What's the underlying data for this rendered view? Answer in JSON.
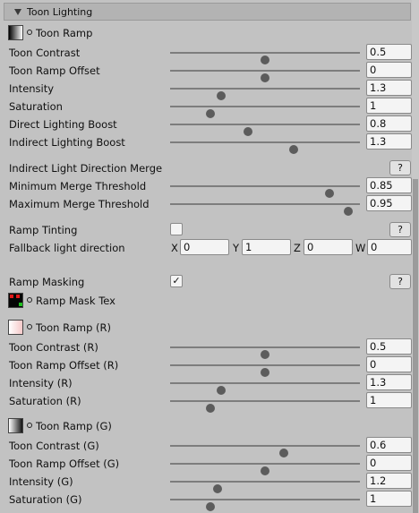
{
  "header": {
    "title": "Toon Lighting"
  },
  "toon_ramp": {
    "label": "Toon Ramp"
  },
  "sliders_main": [
    {
      "label": "Toon Contrast",
      "value": "0.5",
      "fraction": 0.5
    },
    {
      "label": "Toon Ramp Offset",
      "value": "0",
      "fraction": 0.5
    },
    {
      "label": "Intensity",
      "value": "1.3",
      "fraction": 0.27
    },
    {
      "label": "Saturation",
      "value": "1",
      "fraction": 0.21
    },
    {
      "label": "Direct Lighting Boost",
      "value": "0.8",
      "fraction": 0.41
    },
    {
      "label": "Indirect Lighting Boost",
      "value": "1.3",
      "fraction": 0.65
    }
  ],
  "merge": {
    "title": "Indirect Light Direction Merge",
    "help": "?",
    "min": {
      "label": "Minimum Merge Threshold",
      "value": "0.85",
      "fraction": 0.84
    },
    "max": {
      "label": "Maximum Merge Threshold",
      "value": "0.95",
      "fraction": 0.94
    }
  },
  "ramp_tinting": {
    "label": "Ramp Tinting",
    "checked": false,
    "help": "?"
  },
  "fallback": {
    "label": "Fallback light direction",
    "x_label": "X",
    "x": "0",
    "y_label": "Y",
    "y": "1",
    "z_label": "Z",
    "z": "0",
    "w_label": "W",
    "w": "0"
  },
  "ramp_masking": {
    "label": "Ramp Masking",
    "checked": true,
    "check": "✓",
    "help": "?"
  },
  "ramp_mask_tex": {
    "label": "Ramp Mask Tex"
  },
  "toon_ramp_r": {
    "label": "Toon Ramp (R)"
  },
  "sliders_r": [
    {
      "label": "Toon Contrast (R)",
      "value": "0.5",
      "fraction": 0.5
    },
    {
      "label": "Toon Ramp Offset (R)",
      "value": "0",
      "fraction": 0.5
    },
    {
      "label": "Intensity (R)",
      "value": "1.3",
      "fraction": 0.27
    },
    {
      "label": "Saturation (R)",
      "value": "1",
      "fraction": 0.21
    }
  ],
  "toon_ramp_g": {
    "label": "Toon Ramp (G)"
  },
  "sliders_g": [
    {
      "label": "Toon Contrast (G)",
      "value": "0.6",
      "fraction": 0.6
    },
    {
      "label": "Toon Ramp Offset (G)",
      "value": "0",
      "fraction": 0.5
    },
    {
      "label": "Intensity (G)",
      "value": "1.2",
      "fraction": 0.25
    },
    {
      "label": "Saturation (G)",
      "value": "1",
      "fraction": 0.21
    }
  ],
  "colors": {
    "panel": "#c2c2c2",
    "header": "#b3b3b3",
    "knob": "#5c5c5c",
    "field": "#f4f4f4"
  }
}
